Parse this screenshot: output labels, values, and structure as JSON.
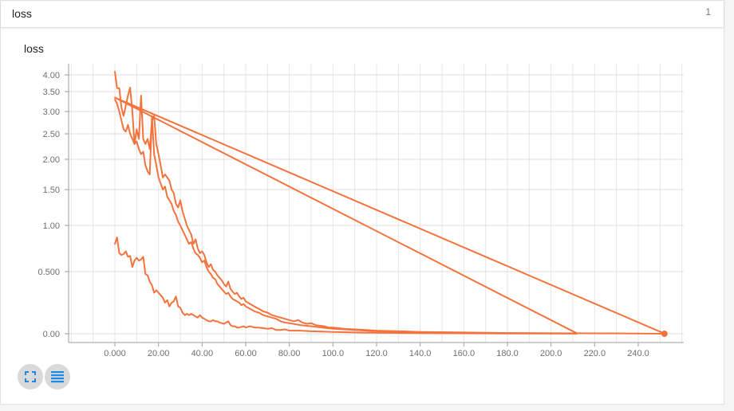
{
  "card": {
    "title": "loss",
    "count": "1"
  },
  "icons": {
    "expand": "expand-icon",
    "data_list": "list-icon",
    "icon_color": "#1e88e5"
  },
  "chart_data": {
    "type": "line",
    "title": "loss",
    "xlabel": "",
    "ylabel": "",
    "xlim": [
      -20,
      260
    ],
    "x_ticks": [
      0,
      20,
      40,
      60,
      80,
      100,
      120,
      140,
      160,
      180,
      200,
      220,
      240
    ],
    "x_tick_labels": [
      "0.000",
      "20.00",
      "40.00",
      "60.00",
      "80.00",
      "100.0",
      "120.0",
      "140.0",
      "160.0",
      "180.0",
      "200.0",
      "220.0",
      "240.0"
    ],
    "y_scale": "log-like",
    "y_ticks": [
      0,
      0.5,
      1,
      1.5,
      2,
      2.5,
      3,
      3.5,
      4
    ],
    "y_tick_labels": [
      "0.00",
      "0.500",
      "1.00",
      "1.50",
      "2.00",
      "2.50",
      "3.00",
      "3.50",
      "4.00"
    ],
    "grid": true,
    "line_color": "#f4733d",
    "series": [
      {
        "points": [
          [
            0,
            0.8
          ],
          [
            1,
            0.87
          ],
          [
            2,
            0.7
          ],
          [
            3,
            0.68
          ],
          [
            4,
            0.69
          ],
          [
            5,
            0.72
          ],
          [
            6,
            0.66
          ],
          [
            7,
            0.67
          ],
          [
            8,
            0.55
          ],
          [
            9,
            0.62
          ],
          [
            10,
            0.65
          ],
          [
            11,
            0.62
          ],
          [
            12,
            0.63
          ],
          [
            13,
            0.66
          ],
          [
            14,
            0.48
          ],
          [
            15,
            0.47
          ],
          [
            16,
            0.42
          ],
          [
            17,
            0.39
          ],
          [
            18,
            0.33
          ],
          [
            19,
            0.35
          ],
          [
            20,
            0.33
          ],
          [
            21,
            0.31
          ],
          [
            22,
            0.29
          ],
          [
            23,
            0.25
          ],
          [
            24,
            0.27
          ],
          [
            25,
            0.22
          ],
          [
            26,
            0.25
          ],
          [
            27,
            0.26
          ],
          [
            28,
            0.3
          ],
          [
            29,
            0.22
          ],
          [
            30,
            0.21
          ],
          [
            31,
            0.17
          ],
          [
            32,
            0.15
          ],
          [
            33,
            0.16
          ],
          [
            34,
            0.15
          ],
          [
            35,
            0.16
          ],
          [
            36,
            0.15
          ],
          [
            37,
            0.14
          ],
          [
            38,
            0.13
          ],
          [
            39,
            0.15
          ],
          [
            40,
            0.13
          ],
          [
            41,
            0.12
          ],
          [
            42,
            0.11
          ],
          [
            43,
            0.1
          ],
          [
            44,
            0.1
          ],
          [
            45,
            0.11
          ],
          [
            46,
            0.1
          ],
          [
            47,
            0.1
          ],
          [
            48,
            0.09
          ],
          [
            49,
            0.085
          ],
          [
            50,
            0.08
          ],
          [
            51,
            0.09
          ],
          [
            52,
            0.1
          ],
          [
            53,
            0.07
          ],
          [
            54,
            0.06
          ],
          [
            55,
            0.06
          ],
          [
            56,
            0.05
          ],
          [
            57,
            0.05
          ],
          [
            58,
            0.055
          ],
          [
            59,
            0.06
          ],
          [
            60,
            0.05
          ],
          [
            62,
            0.06
          ],
          [
            64,
            0.05
          ],
          [
            66,
            0.05
          ],
          [
            68,
            0.045
          ],
          [
            70,
            0.04
          ],
          [
            72,
            0.045
          ],
          [
            74,
            0.03
          ],
          [
            76,
            0.03
          ],
          [
            78,
            0.035
          ],
          [
            80,
            0.025
          ],
          [
            85,
            0.025
          ],
          [
            90,
            0.02
          ],
          [
            95,
            0.018
          ],
          [
            100,
            0.015
          ],
          [
            110,
            0.01
          ],
          [
            120,
            0.008
          ],
          [
            140,
            0.005
          ],
          [
            160,
            0.003
          ],
          [
            180,
            0.002
          ],
          [
            200,
            0.002
          ],
          [
            212,
            0.002
          ],
          [
            0,
            3.35
          ],
          [
            252,
            0.001
          ]
        ]
      },
      {
        "points": [
          [
            0,
            4.1
          ],
          [
            1,
            3.6
          ],
          [
            2,
            3.6
          ],
          [
            3,
            3.1
          ],
          [
            4,
            2.9
          ],
          [
            5,
            3.15
          ],
          [
            6,
            3.4
          ],
          [
            7,
            3.62
          ],
          [
            8,
            3.0
          ],
          [
            9,
            2.3
          ],
          [
            10,
            2.6
          ],
          [
            11,
            2.4
          ],
          [
            12,
            3.4
          ],
          [
            13,
            2.4
          ],
          [
            14,
            2.3
          ],
          [
            15,
            2.4
          ],
          [
            16,
            2.2
          ],
          [
            17,
            2.8
          ],
          [
            18,
            2.9
          ],
          [
            19,
            2.3
          ],
          [
            20,
            2.1
          ],
          [
            21,
            1.9
          ],
          [
            22,
            1.7
          ],
          [
            23,
            1.75
          ],
          [
            24,
            1.7
          ],
          [
            25,
            1.65
          ],
          [
            26,
            1.5
          ],
          [
            27,
            1.45
          ],
          [
            28,
            1.3
          ],
          [
            29,
            1.25
          ],
          [
            30,
            1.35
          ],
          [
            31,
            1.2
          ],
          [
            32,
            1.1
          ],
          [
            33,
            1.0
          ],
          [
            34,
            0.95
          ],
          [
            35,
            0.9
          ],
          [
            36,
            0.8
          ],
          [
            37,
            0.85
          ],
          [
            38,
            0.75
          ],
          [
            39,
            0.7
          ],
          [
            40,
            0.72
          ],
          [
            41,
            0.68
          ],
          [
            42,
            0.6
          ],
          [
            43,
            0.55
          ],
          [
            44,
            0.58
          ],
          [
            45,
            0.52
          ],
          [
            46,
            0.5
          ],
          [
            47,
            0.47
          ],
          [
            48,
            0.45
          ],
          [
            49,
            0.43
          ],
          [
            50,
            0.4
          ],
          [
            51,
            0.38
          ],
          [
            52,
            0.42
          ],
          [
            53,
            0.36
          ],
          [
            54,
            0.34
          ],
          [
            55,
            0.32
          ],
          [
            56,
            0.33
          ],
          [
            57,
            0.3
          ],
          [
            58,
            0.28
          ],
          [
            59,
            0.29
          ],
          [
            60,
            0.26
          ],
          [
            62,
            0.24
          ],
          [
            64,
            0.22
          ],
          [
            66,
            0.2
          ],
          [
            68,
            0.18
          ],
          [
            70,
            0.17
          ],
          [
            72,
            0.15
          ],
          [
            74,
            0.14
          ],
          [
            76,
            0.13
          ],
          [
            78,
            0.12
          ],
          [
            80,
            0.11
          ],
          [
            82,
            0.1
          ],
          [
            84,
            0.11
          ],
          [
            86,
            0.09
          ],
          [
            88,
            0.08
          ],
          [
            90,
            0.085
          ],
          [
            92,
            0.07
          ],
          [
            94,
            0.065
          ],
          [
            96,
            0.06
          ],
          [
            98,
            0.05
          ],
          [
            100,
            0.05
          ],
          [
            105,
            0.04
          ],
          [
            110,
            0.035
          ],
          [
            115,
            0.03
          ],
          [
            120,
            0.025
          ],
          [
            130,
            0.02
          ],
          [
            140,
            0.015
          ],
          [
            160,
            0.01
          ],
          [
            180,
            0.006
          ],
          [
            200,
            0.004
          ],
          [
            220,
            0.003
          ],
          [
            240,
            0.002
          ],
          [
            252,
            0.0
          ]
        ]
      },
      {
        "points": [
          [
            0,
            3.3
          ],
          [
            1,
            3.2
          ],
          [
            2,
            3.0
          ],
          [
            3,
            2.8
          ],
          [
            4,
            2.6
          ],
          [
            5,
            2.55
          ],
          [
            6,
            2.7
          ],
          [
            7,
            2.5
          ],
          [
            8,
            2.4
          ],
          [
            9,
            2.3
          ],
          [
            10,
            2.35
          ],
          [
            11,
            2.2
          ],
          [
            12,
            2.1
          ],
          [
            13,
            2.15
          ],
          [
            14,
            1.9
          ],
          [
            15,
            1.8
          ],
          [
            16,
            1.75
          ],
          [
            17,
            2.9
          ],
          [
            18,
            2.1
          ],
          [
            19,
            1.9
          ],
          [
            20,
            1.7
          ],
          [
            21,
            1.6
          ],
          [
            22,
            1.5
          ],
          [
            23,
            1.55
          ],
          [
            24,
            1.4
          ],
          [
            25,
            1.35
          ],
          [
            26,
            1.3
          ],
          [
            27,
            1.2
          ],
          [
            28,
            1.15
          ],
          [
            29,
            1.05
          ],
          [
            30,
            1.0
          ],
          [
            31,
            0.95
          ],
          [
            32,
            0.9
          ],
          [
            33,
            0.85
          ],
          [
            34,
            0.8
          ],
          [
            35,
            0.82
          ],
          [
            36,
            0.75
          ],
          [
            37,
            0.7
          ],
          [
            38,
            0.68
          ],
          [
            39,
            0.65
          ],
          [
            40,
            0.6
          ],
          [
            41,
            0.62
          ],
          [
            42,
            0.55
          ],
          [
            43,
            0.5
          ],
          [
            44,
            0.48
          ],
          [
            45,
            0.45
          ],
          [
            46,
            0.44
          ],
          [
            47,
            0.4
          ],
          [
            48,
            0.38
          ],
          [
            49,
            0.36
          ],
          [
            50,
            0.34
          ],
          [
            51,
            0.32
          ],
          [
            52,
            0.33
          ],
          [
            53,
            0.3
          ],
          [
            54,
            0.28
          ],
          [
            55,
            0.27
          ],
          [
            56,
            0.26
          ],
          [
            57,
            0.25
          ],
          [
            58,
            0.23
          ],
          [
            59,
            0.24
          ],
          [
            60,
            0.22
          ],
          [
            62,
            0.2
          ],
          [
            64,
            0.18
          ],
          [
            66,
            0.17
          ],
          [
            68,
            0.15
          ],
          [
            70,
            0.14
          ],
          [
            72,
            0.13
          ],
          [
            74,
            0.12
          ],
          [
            76,
            0.1
          ],
          [
            78,
            0.09
          ],
          [
            80,
            0.085
          ],
          [
            85,
            0.07
          ],
          [
            90,
            0.06
          ],
          [
            95,
            0.05
          ],
          [
            100,
            0.04
          ],
          [
            110,
            0.03
          ],
          [
            120,
            0.02
          ],
          [
            130,
            0.015
          ],
          [
            140,
            0.01
          ],
          [
            160,
            0.007
          ],
          [
            180,
            0.005
          ],
          [
            200,
            0.003
          ],
          [
            212,
            0.002
          ]
        ]
      }
    ]
  }
}
